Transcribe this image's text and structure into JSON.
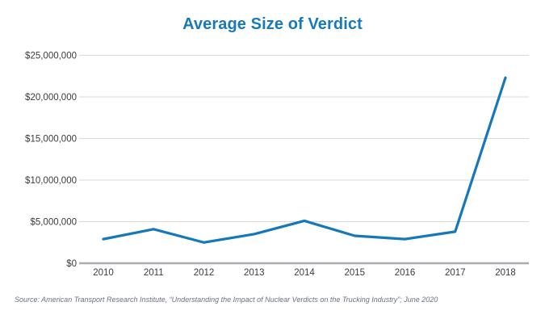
{
  "page": {
    "background": "#ffffff"
  },
  "chart_data": {
    "type": "line",
    "title": "Average Size of Verdict",
    "categories": [
      "2010",
      "2011",
      "2012",
      "2013",
      "2014",
      "2015",
      "2016",
      "2017",
      "2018"
    ],
    "series": [
      {
        "name": "Average Size of Verdict",
        "values": [
          2900000,
          4100000,
          2500000,
          3500000,
          5100000,
          3300000,
          2900000,
          3800000,
          22300000
        ]
      }
    ],
    "xlabel": "",
    "ylabel": "",
    "ylim": [
      0,
      25000000
    ],
    "y_ticks": [
      {
        "value": 25000000,
        "label": "$25,000,000"
      },
      {
        "value": 20000000,
        "label": "$20,000,000"
      },
      {
        "value": 15000000,
        "label": "$15,000,000"
      },
      {
        "value": 10000000,
        "label": "$10,000,000"
      },
      {
        "value": 5000000,
        "label": "$5,000,000"
      },
      {
        "value": 0,
        "label": "$0"
      }
    ],
    "grid": "horizontal-only",
    "legend": "none",
    "colors": {
      "line": "#1578BA",
      "title": "#1779BB",
      "gridline": "#d9d9d9",
      "axis": "#a8aeb4"
    }
  },
  "source": {
    "text": "Source: American Transport Research Institute, “Understanding the Impact of Nuclear Verdicts on the Trucking Industry”; June 2020"
  }
}
